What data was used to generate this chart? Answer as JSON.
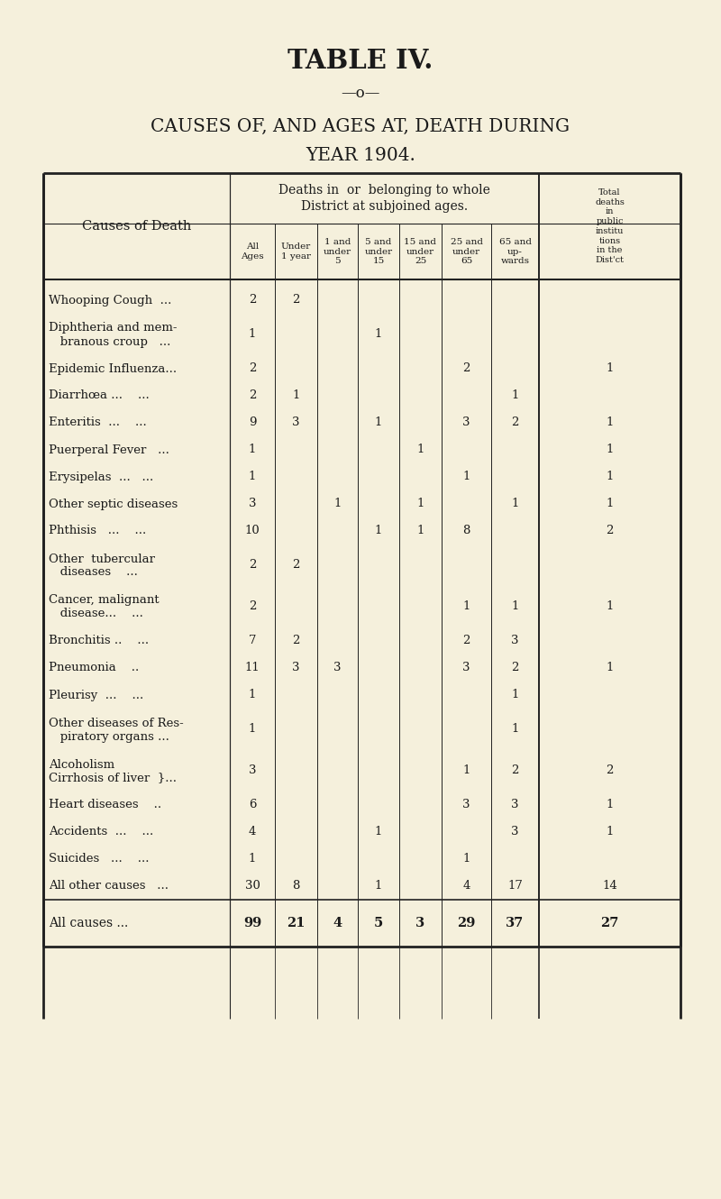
{
  "title1": "TABLE IV.",
  "separator": "—o—",
  "title2": "CAUSES OF, AND AGES AT, DEATH DURING",
  "title3": "YEAR 1904.",
  "bg_color": "#f5f0dc",
  "rows": [
    {
      "cause": "Whooping Cough  ...",
      "cause2": "",
      "all": "2",
      "u1": "2",
      "1u5": "",
      "5u15": "",
      "15u25": "",
      "25u65": "",
      "65up": "",
      "inst": ""
    },
    {
      "cause": "Diphtheria and mem-",
      "cause2": "   branous croup   ...",
      "all": "1",
      "u1": "",
      "1u5": "",
      "5u15": "1",
      "15u25": "",
      "25u65": "",
      "65up": "",
      "inst": ""
    },
    {
      "cause": "Epidemic Influenza...",
      "cause2": "",
      "all": "2",
      "u1": "",
      "1u5": "",
      "5u15": "",
      "15u25": "",
      "25u65": "2",
      "65up": "",
      "inst": "1"
    },
    {
      "cause": "Diarrhœa ...    ...",
      "cause2": "",
      "all": "2",
      "u1": "1",
      "1u5": "",
      "5u15": "",
      "15u25": "",
      "25u65": "",
      "65up": "1",
      "inst": ""
    },
    {
      "cause": "Enteritis  ...    ...",
      "cause2": "",
      "all": "9",
      "u1": "3",
      "1u5": "",
      "5u15": "1",
      "15u25": "",
      "25u65": "3",
      "65up": "2",
      "inst": "1"
    },
    {
      "cause": "Puerperal Fever   ...",
      "cause2": "",
      "all": "1",
      "u1": "",
      "1u5": "",
      "5u15": "",
      "15u25": "1",
      "25u65": "",
      "65up": "",
      "inst": "1"
    },
    {
      "cause": "Erysipelas  ...   ...",
      "cause2": "",
      "all": "1",
      "u1": "",
      "1u5": "",
      "5u15": "",
      "15u25": "",
      "25u65": "1",
      "65up": "",
      "inst": "1"
    },
    {
      "cause": "Other septic diseases",
      "cause2": "",
      "all": "3",
      "u1": "",
      "1u5": "1",
      "5u15": "",
      "15u25": "1",
      "25u65": "",
      "65up": "1",
      "inst": "1"
    },
    {
      "cause": "Phthisis   ...    ...",
      "cause2": "",
      "all": "10",
      "u1": "",
      "1u5": "",
      "5u15": "1",
      "15u25": "1",
      "25u65": "8",
      "65up": "",
      "inst": "2"
    },
    {
      "cause": "Other  tubercular",
      "cause2": "   diseases    ...",
      "all": "2",
      "u1": "2",
      "1u5": "",
      "5u15": "",
      "15u25": "",
      "25u65": "",
      "65up": "",
      "inst": ""
    },
    {
      "cause": "Cancer, malignant",
      "cause2": "   disease...    ...",
      "all": "2",
      "u1": "",
      "1u5": "",
      "5u15": "",
      "15u25": "",
      "25u65": "1",
      "65up": "1",
      "inst": "1"
    },
    {
      "cause": "Bronchitis ..    ...",
      "cause2": "",
      "all": "7",
      "u1": "2",
      "1u5": "",
      "5u15": "",
      "15u25": "",
      "25u65": "2",
      "65up": "3",
      "inst": ""
    },
    {
      "cause": "Pneumonia    ..",
      "cause2": "",
      "all": "11",
      "u1": "3",
      "1u5": "3",
      "5u15": "",
      "15u25": "",
      "25u65": "3",
      "65up": "2",
      "inst": "1"
    },
    {
      "cause": "Pleurisy  ...    ...",
      "cause2": "",
      "all": "1",
      "u1": "",
      "1u5": "",
      "5u15": "",
      "15u25": "",
      "25u65": "",
      "65up": "1",
      "inst": ""
    },
    {
      "cause": "Other diseases of Res-",
      "cause2": "   piratory organs ...",
      "all": "1",
      "u1": "",
      "1u5": "",
      "5u15": "",
      "15u25": "",
      "25u65": "",
      "65up": "1",
      "inst": ""
    },
    {
      "cause": "Alcoholism",
      "cause2": "Cirrhosis of liver  }...",
      "all": "3",
      "u1": "",
      "1u5": "",
      "5u15": "",
      "15u25": "",
      "25u65": "1",
      "65up": "2",
      "inst": "2"
    },
    {
      "cause": "Heart diseases    ..",
      "cause2": "",
      "all": "6",
      "u1": "",
      "1u5": "",
      "5u15": "",
      "15u25": "",
      "25u65": "3",
      "65up": "3",
      "inst": "1"
    },
    {
      "cause": "Accidents  ...    ...",
      "cause2": "",
      "all": "4",
      "u1": "",
      "1u5": "",
      "5u15": "1",
      "15u25": "",
      "25u65": "",
      "65up": "3",
      "inst": "1"
    },
    {
      "cause": "Suicides   ...    ...",
      "cause2": "",
      "all": "1",
      "u1": "",
      "1u5": "",
      "5u15": "",
      "15u25": "",
      "25u65": "1",
      "65up": "",
      "inst": ""
    },
    {
      "cause": "All other causes   ...",
      "cause2": "",
      "all": "30",
      "u1": "8",
      "1u5": "",
      "5u15": "1",
      "15u25": "",
      "25u65": "4",
      "65up": "17",
      "inst": "14"
    }
  ],
  "totals": {
    "cause": "All causes ...",
    "all": "99",
    "u1": "21",
    "1u5": "4",
    "5u15": "5",
    "15u25": "3",
    "25u65": "29",
    "65up": "37",
    "inst": "27"
  }
}
